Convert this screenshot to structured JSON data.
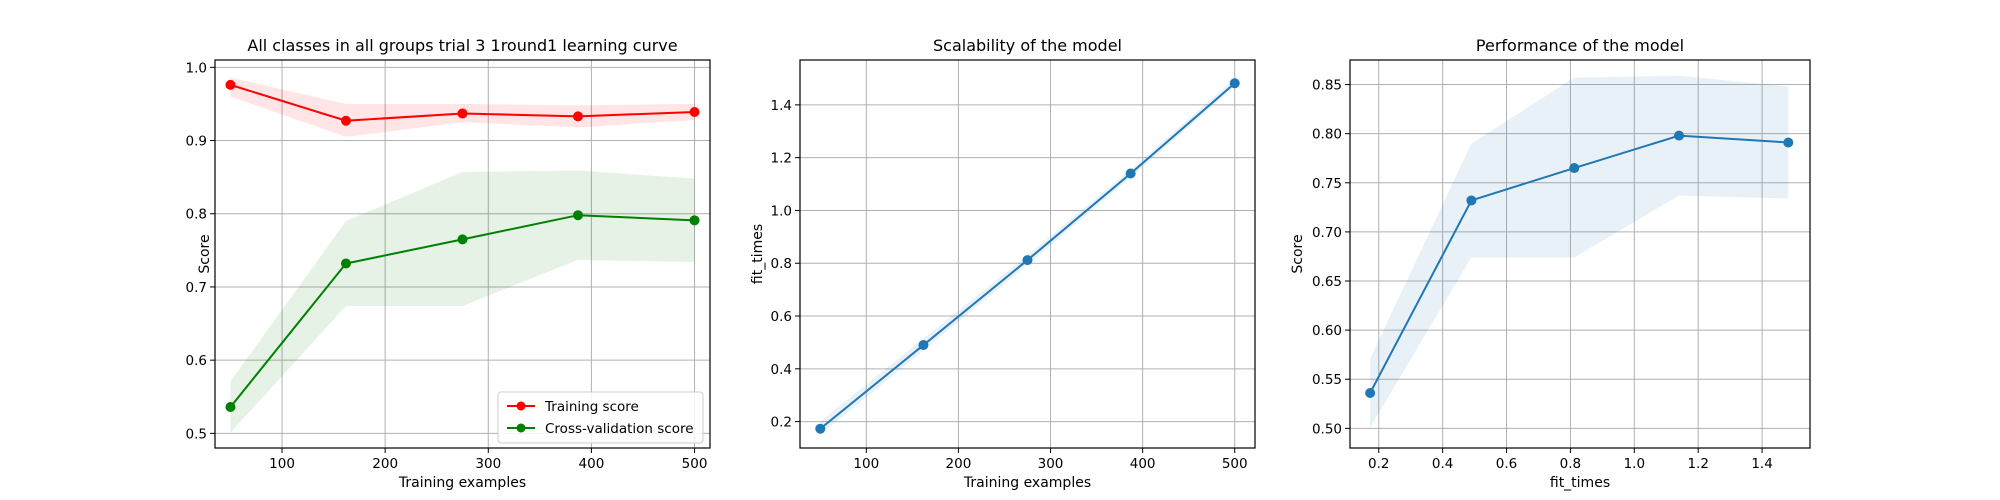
{
  "chart_data": [
    {
      "type": "line",
      "title": "All classes in all groups trial 3 1round1 learning curve",
      "xlabel": "Training examples",
      "ylabel": "Score",
      "xlim": [
        35,
        515
      ],
      "ylim": [
        0.48,
        1.01
      ],
      "xticks": [
        100,
        200,
        300,
        400,
        500
      ],
      "yticks": [
        0.5,
        0.6,
        0.7,
        0.8,
        0.9,
        1.0
      ],
      "xtick_labels": [
        "100",
        "200",
        "300",
        "400",
        "500"
      ],
      "ytick_labels": [
        "0.5",
        "0.6",
        "0.7",
        "0.8",
        "0.9",
        "1.0"
      ],
      "grid": true,
      "legend_position": "lower-right",
      "x": [
        50,
        162,
        275,
        387,
        500
      ],
      "series": [
        {
          "name": "Training score",
          "color": "#ff0000",
          "band_color": "#ff0000",
          "values": [
            0.976,
            0.927,
            0.937,
            0.933,
            0.939
          ],
          "band_low": [
            0.96,
            0.905,
            0.925,
            0.918,
            0.928
          ],
          "band_high": [
            0.986,
            0.95,
            0.95,
            0.948,
            0.95
          ]
        },
        {
          "name": "Cross-validation score",
          "color": "#008000",
          "band_color": "#008000",
          "values": [
            0.536,
            0.732,
            0.765,
            0.798,
            0.791
          ],
          "band_low": [
            0.501,
            0.674,
            0.674,
            0.737,
            0.734
          ],
          "band_high": [
            0.571,
            0.79,
            0.857,
            0.859,
            0.848
          ]
        }
      ]
    },
    {
      "type": "line",
      "title": "Scalability of the model",
      "xlabel": "Training examples",
      "ylabel": "fit_times",
      "xlim": [
        28,
        522
      ],
      "ylim": [
        0.1,
        1.57
      ],
      "xticks": [
        100,
        200,
        300,
        400,
        500
      ],
      "yticks": [
        0.2,
        0.4,
        0.6,
        0.8,
        1.0,
        1.2,
        1.4
      ],
      "xtick_labels": [
        "100",
        "200",
        "300",
        "400",
        "500"
      ],
      "ytick_labels": [
        "0.2",
        "0.4",
        "0.6",
        "0.8",
        "1.0",
        "1.2",
        "1.4"
      ],
      "grid": true,
      "x": [
        50,
        162,
        275,
        387,
        500
      ],
      "series": [
        {
          "color": "#1f77b4",
          "band_color": "#1f77b4",
          "values": [
            0.173,
            0.49,
            0.812,
            1.14,
            1.482
          ],
          "band_low": [
            0.15,
            0.47,
            0.795,
            1.125,
            1.47
          ],
          "band_high": [
            0.2,
            0.515,
            0.83,
            1.155,
            1.5
          ]
        }
      ]
    },
    {
      "type": "line",
      "title": "Performance of the model",
      "xlabel": "fit_times",
      "ylabel": "Score",
      "xlim": [
        0.11,
        1.55
      ],
      "ylim": [
        0.48,
        0.875
      ],
      "xticks": [
        0.2,
        0.4,
        0.6,
        0.8,
        1.0,
        1.2,
        1.4
      ],
      "yticks": [
        0.5,
        0.55,
        0.6,
        0.65,
        0.7,
        0.75,
        0.8,
        0.85
      ],
      "xtick_labels": [
        "0.2",
        "0.4",
        "0.6",
        "0.8",
        "1.0",
        "1.2",
        "1.4"
      ],
      "ytick_labels": [
        "0.50",
        "0.55",
        "0.60",
        "0.65",
        "0.70",
        "0.75",
        "0.80",
        "0.85"
      ],
      "grid": true,
      "x": [
        0.173,
        0.49,
        0.812,
        1.14,
        1.482
      ],
      "series": [
        {
          "color": "#1f77b4",
          "band_color": "#1f77b4",
          "values": [
            0.536,
            0.732,
            0.765,
            0.798,
            0.791
          ],
          "band_low": [
            0.501,
            0.674,
            0.674,
            0.737,
            0.734
          ],
          "band_high": [
            0.571,
            0.79,
            0.857,
            0.859,
            0.848
          ]
        }
      ]
    }
  ]
}
